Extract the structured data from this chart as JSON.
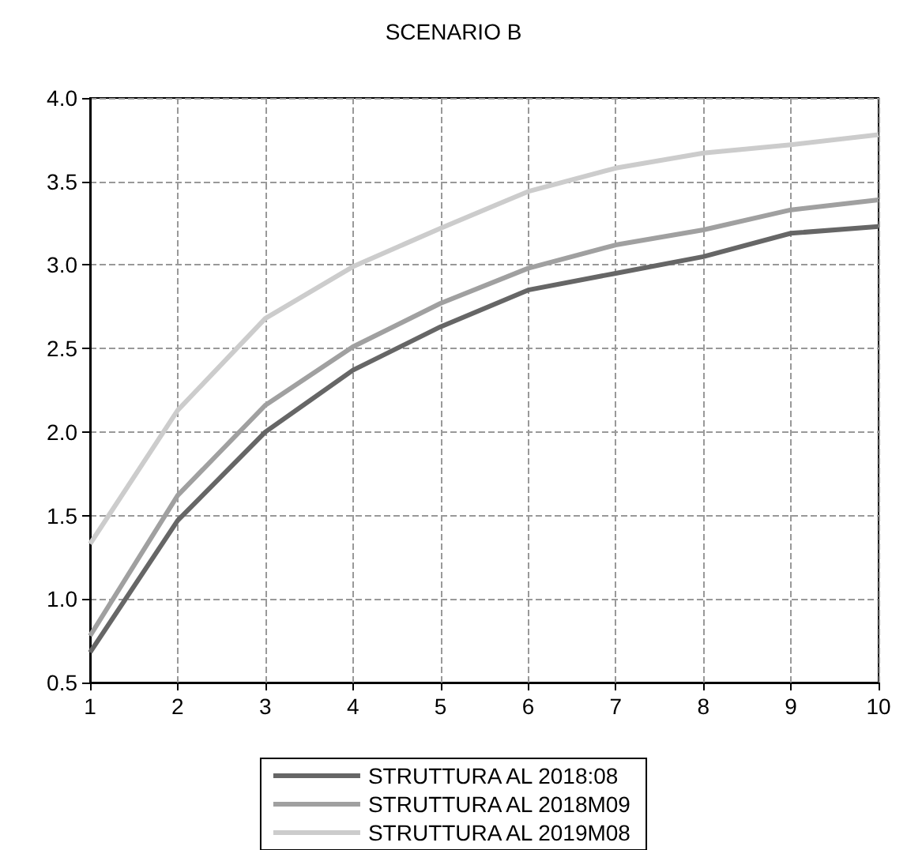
{
  "chart_data": {
    "type": "line",
    "title": "SCENARIO B",
    "x": [
      1,
      2,
      3,
      4,
      5,
      6,
      7,
      8,
      9,
      10
    ],
    "series": [
      {
        "name": "STRUTTURA AL 2018:08",
        "color": "#666666",
        "values": [
          0.68,
          1.47,
          2.0,
          2.37,
          2.63,
          2.85,
          2.95,
          3.05,
          3.19,
          3.23
        ]
      },
      {
        "name": "STRUTTURA AL 2018M09",
        "color": "#a0a0a0",
        "values": [
          0.78,
          1.62,
          2.16,
          2.51,
          2.77,
          2.98,
          3.12,
          3.21,
          3.33,
          3.39
        ]
      },
      {
        "name": "STRUTTURA AL 2019M08",
        "color": "#cccccc",
        "values": [
          1.33,
          2.13,
          2.68,
          2.99,
          3.22,
          3.44,
          3.58,
          3.67,
          3.72,
          3.78
        ]
      }
    ],
    "xlim": [
      1,
      10
    ],
    "xticks": [
      1,
      2,
      3,
      4,
      5,
      6,
      7,
      8,
      9,
      10
    ],
    "ylim": [
      0.5,
      4.0
    ],
    "yticks": [
      {
        "value": 0.5,
        "label": "0.5"
      },
      {
        "value": 1.0,
        "label": "1.0"
      },
      {
        "value": 1.5,
        "label": "1.5"
      },
      {
        "value": 2.0,
        "label": "2.0"
      },
      {
        "value": 2.5,
        "label": "2.5"
      },
      {
        "value": 3.0,
        "label": "3.0"
      },
      {
        "value": 3.5,
        "label": "3.5"
      },
      {
        "value": 4.0,
        "label": "4.0"
      }
    ],
    "grid": true,
    "legend": "bottom",
    "marker": "none",
    "line_style": "solid"
  }
}
